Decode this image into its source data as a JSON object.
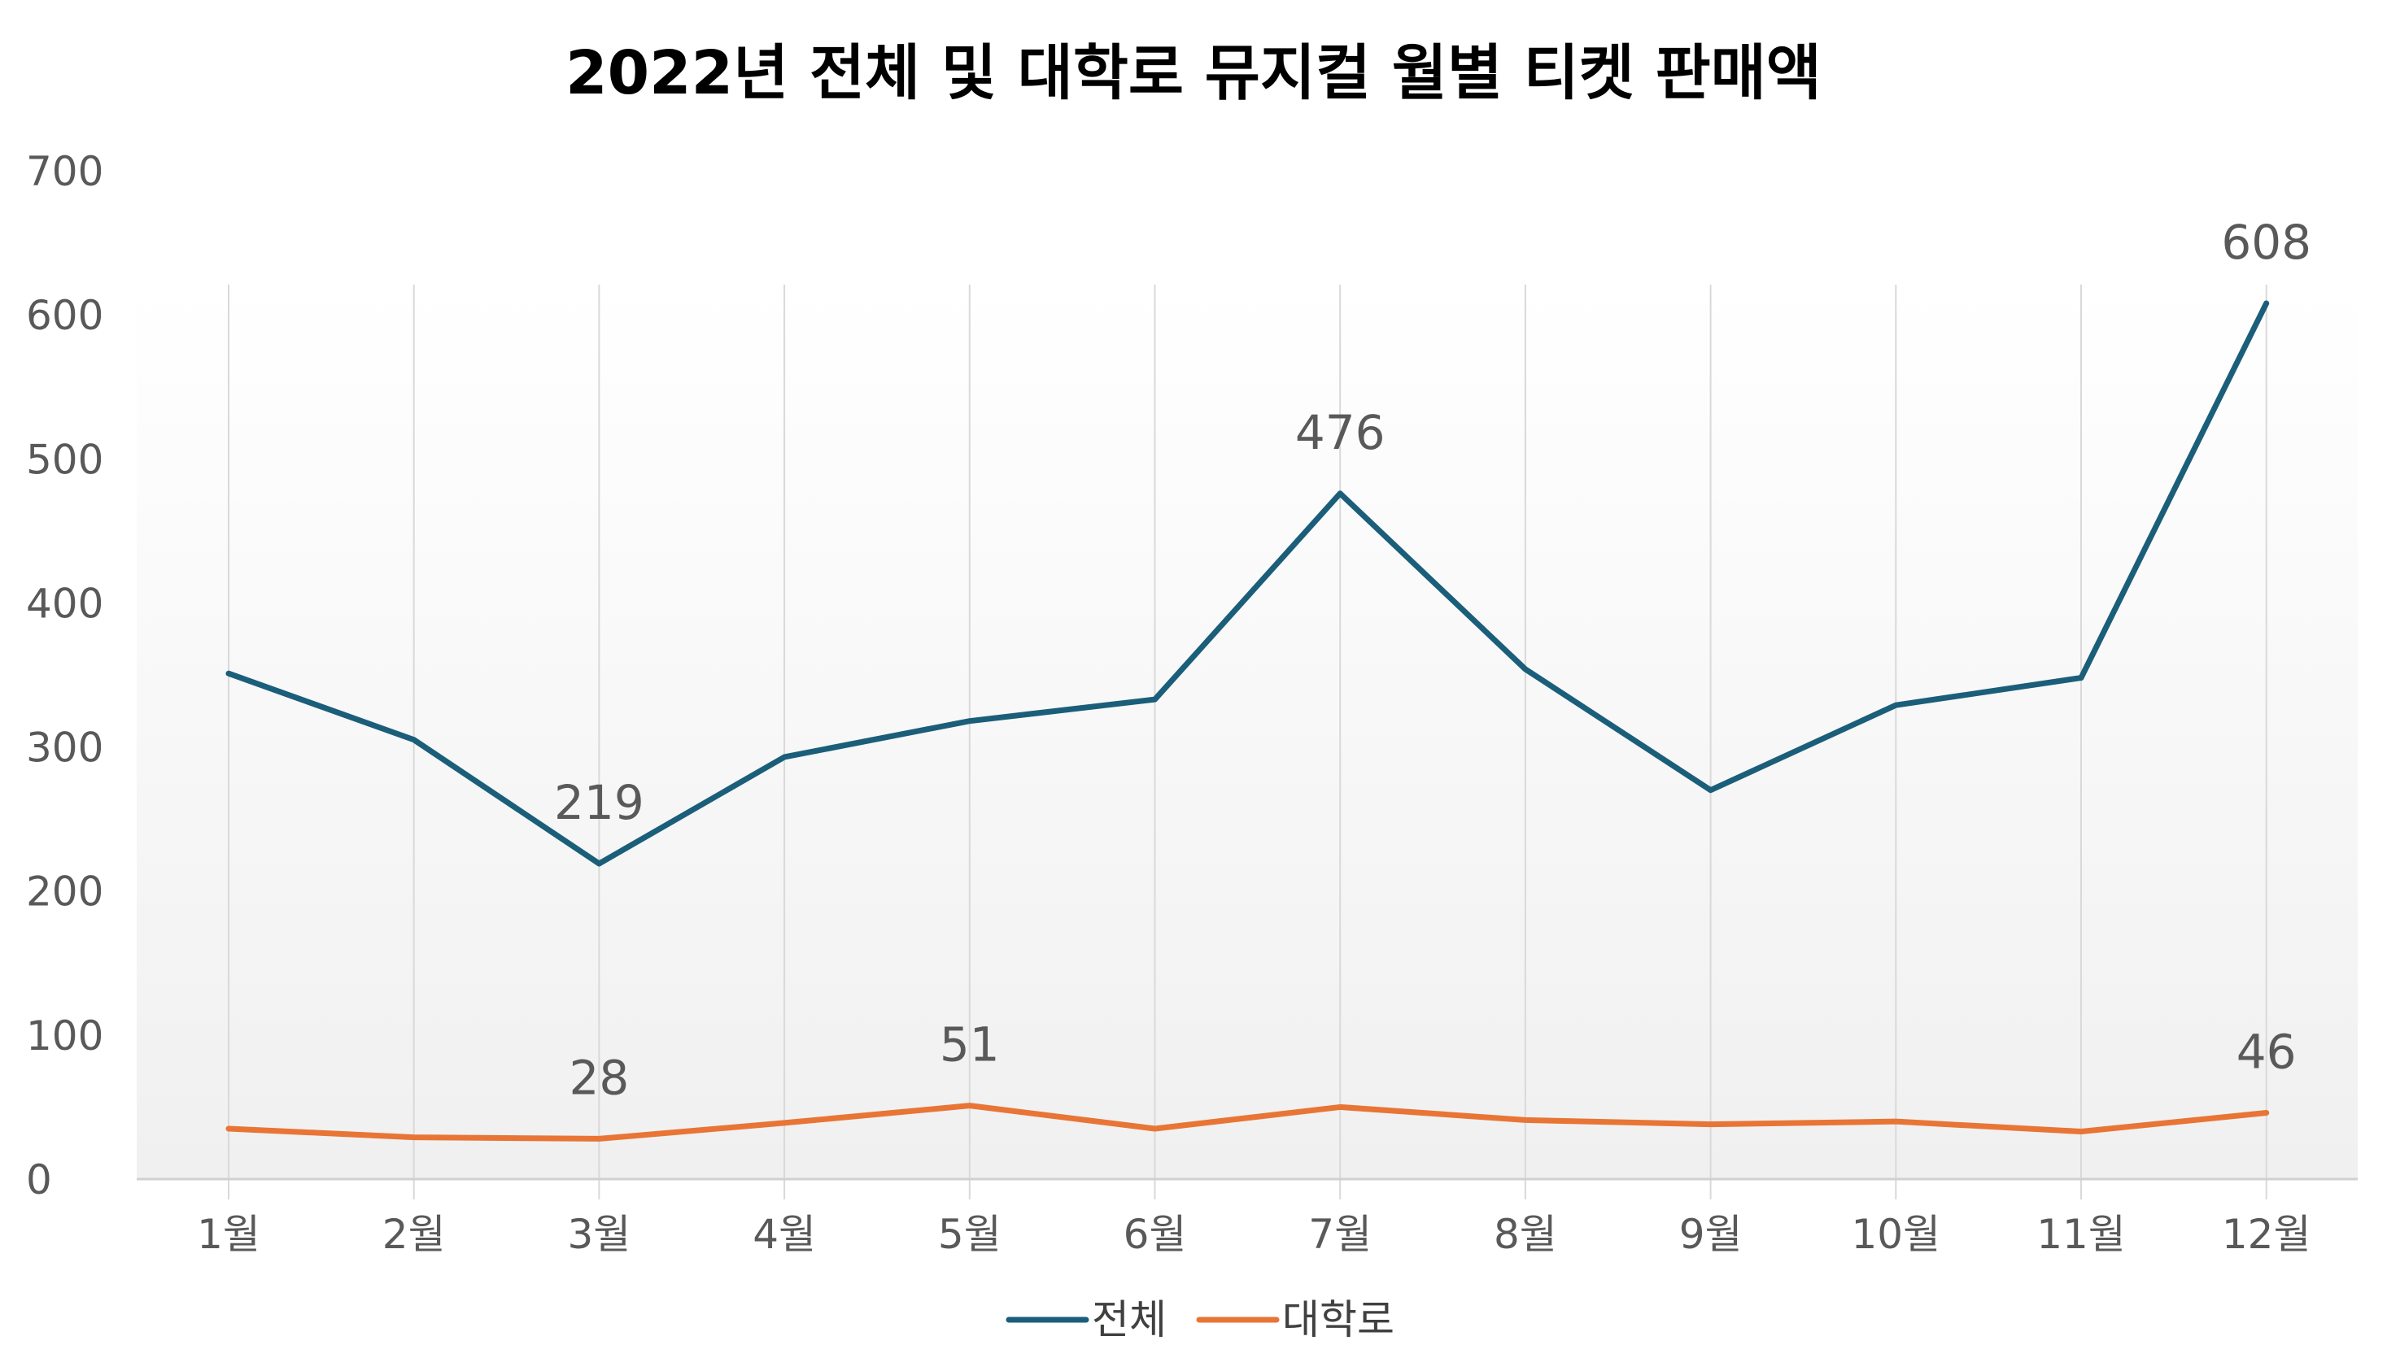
{
  "chart_data": {
    "type": "line",
    "title": "2022년 전체 및 대학로 뮤지컬 월별 티켓 판매액",
    "xlabel": "",
    "ylabel": "",
    "categories": [
      "1월",
      "2월",
      "3월",
      "4월",
      "5월",
      "6월",
      "7월",
      "8월",
      "9월",
      "10월",
      "11월",
      "12월"
    ],
    "yticks": [
      "0",
      "100",
      "200",
      "300",
      "400",
      "500",
      "600",
      "700"
    ],
    "ylim": [
      0,
      700
    ],
    "grid": "vertical",
    "legend_position": "bottom",
    "series": [
      {
        "name": "전체",
        "color": "#1b5e7a",
        "values": [
          351,
          305,
          219,
          293,
          318,
          333,
          476,
          354,
          270,
          329,
          348,
          608
        ],
        "labels": [
          {
            "index": 2,
            "text": "219"
          },
          {
            "index": 6,
            "text": "476"
          },
          {
            "index": 11,
            "text": "608"
          }
        ]
      },
      {
        "name": "대학로",
        "color": "#e87535",
        "values": [
          35,
          29,
          28,
          39,
          51,
          35,
          50,
          41,
          38,
          40,
          33,
          46
        ],
        "labels": [
          {
            "index": 2,
            "text": "28"
          },
          {
            "index": 4,
            "text": "51"
          },
          {
            "index": 11,
            "text": "46"
          }
        ]
      }
    ]
  }
}
